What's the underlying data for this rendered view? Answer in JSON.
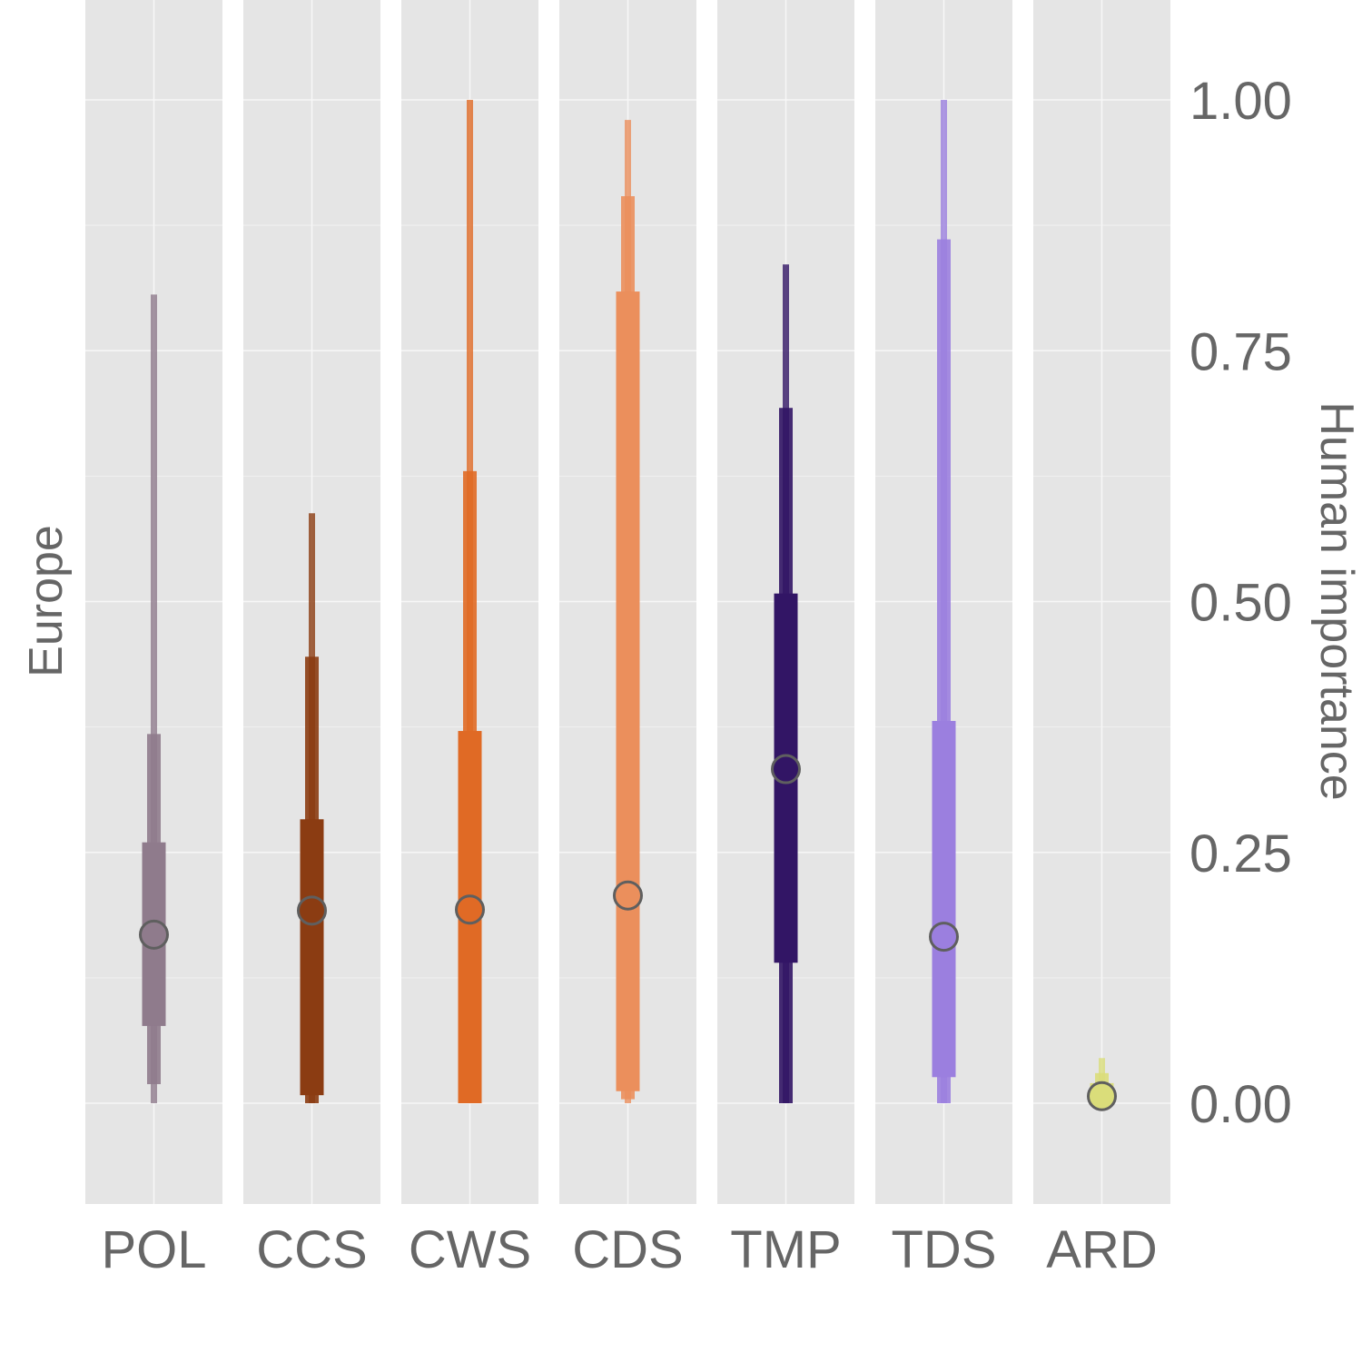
{
  "chart_data": {
    "type": "interval",
    "facet_label": "Europe",
    "ylabel": "Human importance",
    "xlabel": "",
    "ylim": [
      -0.2,
      1.2
    ],
    "y_ticks": [
      0.0,
      0.25,
      0.5,
      0.75,
      1.0
    ],
    "y_tick_labels": [
      "0.00",
      "0.25",
      "0.50",
      "0.75",
      "1.00"
    ],
    "grid": true,
    "categories": [
      "POL",
      "CCS",
      "CWS",
      "CDS",
      "TMP",
      "TDS",
      "ARD"
    ],
    "series": [
      {
        "category": "POL",
        "color": "#8f7b8c",
        "median": 0.168,
        "inner": [
          0.077,
          0.26
        ],
        "middle": [
          0.019,
          0.368
        ],
        "outer": [
          0.0,
          0.806
        ]
      },
      {
        "category": "CCS",
        "color": "#8b3c12",
        "median": 0.192,
        "inner": [
          0.008,
          0.283
        ],
        "middle": [
          0.0,
          0.445
        ],
        "outer": [
          0.0,
          0.588
        ]
      },
      {
        "category": "CWS",
        "color": "#e06a25",
        "median": 0.193,
        "inner": [
          0.0,
          0.371
        ],
        "middle": [
          0.0,
          0.63
        ],
        "outer": [
          0.0,
          1.0
        ]
      },
      {
        "category": "CDS",
        "color": "#eb8f5c",
        "median": 0.207,
        "inner": [
          0.012,
          0.809
        ],
        "middle": [
          0.004,
          0.904
        ],
        "outer": [
          0.0,
          0.98
        ]
      },
      {
        "category": "TMP",
        "color": "#321565",
        "median": 0.333,
        "inner": [
          0.14,
          0.508
        ],
        "middle": [
          0.0,
          0.693
        ],
        "outer": [
          0.0,
          0.836
        ]
      },
      {
        "category": "TDS",
        "color": "#9b7fdf",
        "median": 0.166,
        "inner": [
          0.026,
          0.381
        ],
        "middle": [
          0.0,
          0.861
        ],
        "outer": [
          0.0,
          1.0
        ]
      },
      {
        "category": "ARD",
        "color": "#dadd7a",
        "median": 0.007,
        "inner": [
          0.0,
          0.02
        ],
        "middle": [
          0.0,
          0.03
        ],
        "outer": [
          0.0,
          0.045
        ]
      }
    ]
  }
}
